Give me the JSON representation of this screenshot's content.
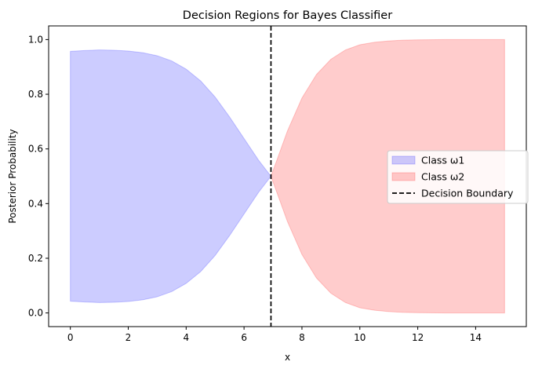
{
  "chart_data": {
    "type": "area",
    "title": "Decision Regions for Bayes Classifier",
    "xlabel": "x",
    "ylabel": "Posterior Probability",
    "xlim": [
      -0.75,
      15.75
    ],
    "ylim": [
      -0.05,
      1.05
    ],
    "xticks": [
      0,
      2,
      4,
      6,
      8,
      10,
      12,
      14
    ],
    "yticks": [
      0.0,
      0.2,
      0.4,
      0.6,
      0.8,
      1.0
    ],
    "grid": false,
    "legend_position": "center-right",
    "decision_boundary_x": 6.93,
    "series": [
      {
        "name": "Class ω1",
        "color": "#0000ff",
        "fill_alpha": 0.2,
        "x": [
          0,
          0.5,
          1.0,
          1.5,
          2.0,
          2.5,
          3.0,
          3.5,
          4.0,
          4.5,
          5.0,
          5.5,
          6.0,
          6.5,
          6.93
        ],
        "upper": [
          0.957,
          0.96,
          0.962,
          0.961,
          0.958,
          0.952,
          0.941,
          0.922,
          0.892,
          0.849,
          0.79,
          0.717,
          0.638,
          0.559,
          0.5
        ],
        "lower": [
          0.043,
          0.04,
          0.038,
          0.039,
          0.042,
          0.048,
          0.059,
          0.078,
          0.108,
          0.151,
          0.21,
          0.283,
          0.362,
          0.441,
          0.5
        ]
      },
      {
        "name": "Class ω2",
        "color": "#ff0000",
        "fill_alpha": 0.2,
        "x": [
          6.93,
          7.25,
          7.5,
          8.0,
          8.5,
          9.0,
          9.5,
          10.0,
          10.5,
          11.0,
          11.5,
          12.0,
          13.0,
          14.0,
          15.0
        ],
        "upper": [
          0.5,
          0.593,
          0.666,
          0.786,
          0.872,
          0.928,
          0.962,
          0.981,
          0.99,
          0.995,
          0.998,
          0.999,
          1.0,
          1.0,
          1.0
        ],
        "lower": [
          0.5,
          0.407,
          0.334,
          0.214,
          0.128,
          0.072,
          0.038,
          0.019,
          0.01,
          0.005,
          0.002,
          0.001,
          0.0,
          0.0,
          0.0
        ]
      }
    ],
    "legend": [
      {
        "label": "Class ω1",
        "kind": "patch",
        "color": "#0000ff"
      },
      {
        "label": "Class ω2",
        "kind": "patch",
        "color": "#ff0000"
      },
      {
        "label": "Decision Boundary",
        "kind": "dashed-line",
        "color": "#000000"
      }
    ]
  }
}
